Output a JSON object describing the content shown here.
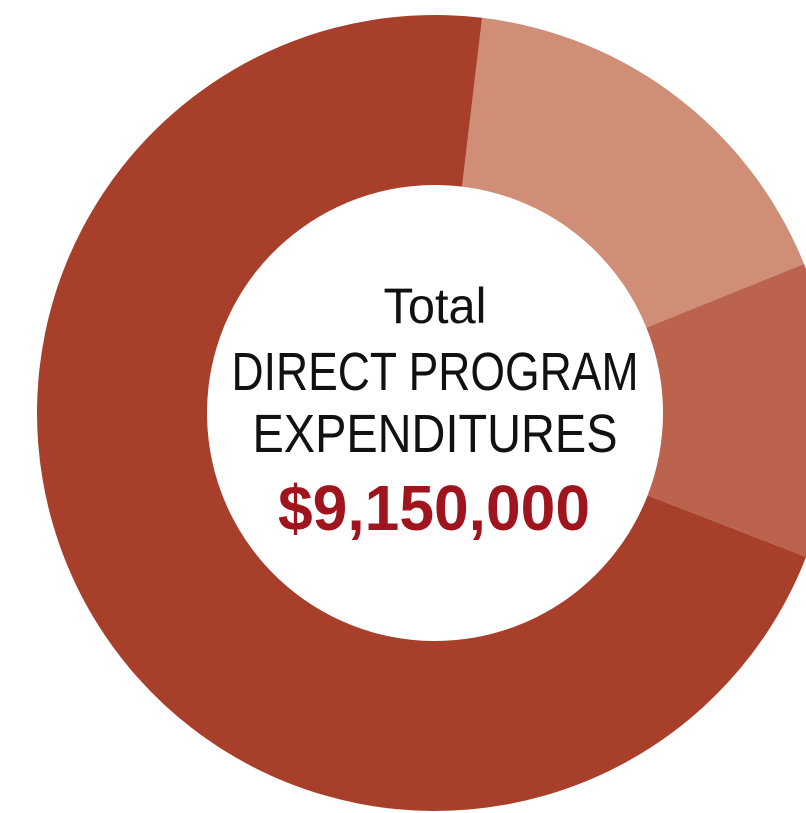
{
  "chart_data": {
    "type": "donut",
    "center_text": [
      "Total",
      "DIRECT PROGRAM",
      "EXPENDITURES"
    ],
    "total_label": "$9,150,000",
    "values": [
      17,
      12,
      71
    ],
    "colors": [
      "#d08e76",
      "#bb634d",
      "#a83f2b"
    ]
  }
}
